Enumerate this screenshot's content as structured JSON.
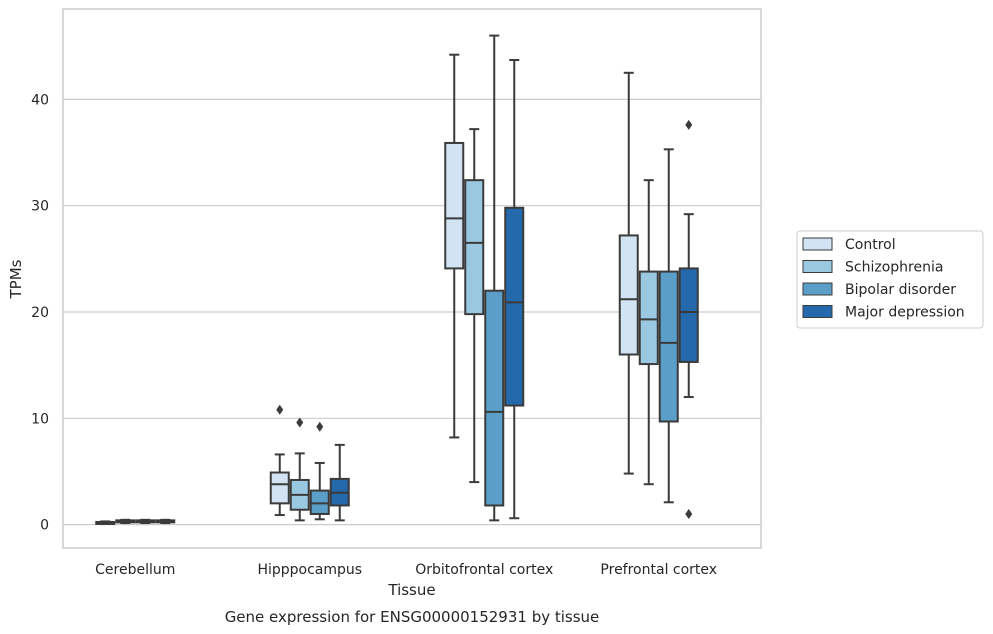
{
  "chart_data": {
    "type": "box",
    "title": "",
    "caption": "Gene expression for ENSG00000152931 by tissue",
    "xlabel": "Tissue",
    "ylabel": "TPMs",
    "ylim": [
      -2.2,
      48.5
    ],
    "yticks": [
      0,
      10,
      20,
      30,
      40
    ],
    "grid": "horizontal",
    "legend_position": "right",
    "categories": [
      "Cerebellum",
      "Hipppocampus",
      "Orbitofrontal cortex",
      "Prefrontal cortex"
    ],
    "series": [
      {
        "name": "Control",
        "color": "#d2e3f3",
        "boxes": [
          {
            "whisker_low": 0.1,
            "q1": 0.15,
            "median": 0.2,
            "q3": 0.25,
            "whisker_high": 0.3,
            "outliers": []
          },
          {
            "whisker_low": 0.9,
            "q1": 2.0,
            "median": 3.8,
            "q3": 4.9,
            "whisker_high": 6.6,
            "outliers": [
              10.8
            ]
          },
          {
            "whisker_low": 8.2,
            "q1": 24.1,
            "median": 28.8,
            "q3": 35.9,
            "whisker_high": 44.2,
            "outliers": []
          },
          {
            "whisker_low": 4.8,
            "q1": 16.0,
            "median": 21.2,
            "q3": 27.2,
            "whisker_high": 42.5,
            "outliers": []
          }
        ]
      },
      {
        "name": "Schizophrenia",
        "color": "#9ac8e0",
        "boxes": [
          {
            "whisker_low": 0.15,
            "q1": 0.25,
            "median": 0.32,
            "q3": 0.4,
            "whisker_high": 0.45,
            "outliers": []
          },
          {
            "whisker_low": 0.4,
            "q1": 1.4,
            "median": 2.8,
            "q3": 4.2,
            "whisker_high": 6.7,
            "outliers": [
              9.6
            ]
          },
          {
            "whisker_low": 4.0,
            "q1": 19.8,
            "median": 26.5,
            "q3": 32.4,
            "whisker_high": 37.2,
            "outliers": []
          },
          {
            "whisker_low": 3.8,
            "q1": 15.1,
            "median": 19.3,
            "q3": 23.8,
            "whisker_high": 32.4,
            "outliers": []
          }
        ]
      },
      {
        "name": "Bipolar disorder",
        "color": "#5b9fc9",
        "boxes": [
          {
            "whisker_low": 0.15,
            "q1": 0.25,
            "median": 0.33,
            "q3": 0.4,
            "whisker_high": 0.45,
            "outliers": []
          },
          {
            "whisker_low": 0.5,
            "q1": 1.0,
            "median": 2.0,
            "q3": 3.2,
            "whisker_high": 5.8,
            "outliers": [
              9.2
            ]
          },
          {
            "whisker_low": 0.4,
            "q1": 1.8,
            "median": 10.6,
            "q3": 22.0,
            "whisker_high": 46.0,
            "outliers": []
          },
          {
            "whisker_low": 2.1,
            "q1": 9.7,
            "median": 17.1,
            "q3": 23.8,
            "whisker_high": 35.3,
            "outliers": []
          }
        ]
      },
      {
        "name": "Major depression",
        "color": "#2469ab",
        "boxes": [
          {
            "whisker_low": 0.15,
            "q1": 0.25,
            "median": 0.33,
            "q3": 0.4,
            "whisker_high": 0.45,
            "outliers": []
          },
          {
            "whisker_low": 0.4,
            "q1": 1.8,
            "median": 3.0,
            "q3": 4.3,
            "whisker_high": 7.5,
            "outliers": []
          },
          {
            "whisker_low": 0.6,
            "q1": 11.2,
            "median": 20.9,
            "q3": 29.8,
            "whisker_high": 43.7,
            "outliers": []
          },
          {
            "whisker_low": 12.0,
            "q1": 15.3,
            "median": 20.0,
            "q3": 24.1,
            "whisker_high": 29.2,
            "outliers": [
              37.6,
              1.0
            ]
          }
        ]
      }
    ]
  }
}
